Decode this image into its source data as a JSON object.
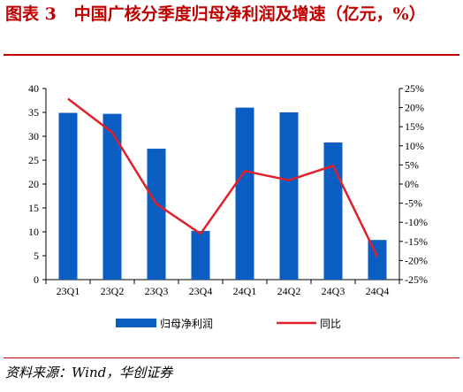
{
  "figure": {
    "title": "图表 3   中国广核分季度归母净利润及增速（亿元，%）",
    "source": "资料来源：Wind，华创证券"
  },
  "colors": {
    "title": "#c00000",
    "bar": "#0a5ec2",
    "line": "#e0202a"
  },
  "chart_data": {
    "type": "bar",
    "categories": [
      "23Q1",
      "23Q2",
      "23Q3",
      "23Q4",
      "24Q1",
      "24Q2",
      "24Q3",
      "24Q4"
    ],
    "series": [
      {
        "name": "归母净利润",
        "type": "bar",
        "axis": "left",
        "values": [
          34.9,
          34.7,
          27.4,
          10.2,
          36.0,
          35.0,
          28.7,
          8.3
        ]
      },
      {
        "name": "同比",
        "type": "line",
        "axis": "right",
        "unit": "%",
        "values": [
          22.3,
          13.5,
          -5.2,
          -13.0,
          3.4,
          1.0,
          4.8,
          -19.0
        ]
      }
    ],
    "ylim": [
      0,
      40
    ],
    "yticks": [
      0,
      5,
      10,
      15,
      20,
      25,
      30,
      35,
      40
    ],
    "y2lim": [
      -25,
      25
    ],
    "y2ticks": [
      -25,
      -20,
      -15,
      -10,
      -5,
      0,
      5,
      10,
      15,
      20,
      25
    ],
    "legend_position": "bottom-center",
    "grid": false
  }
}
